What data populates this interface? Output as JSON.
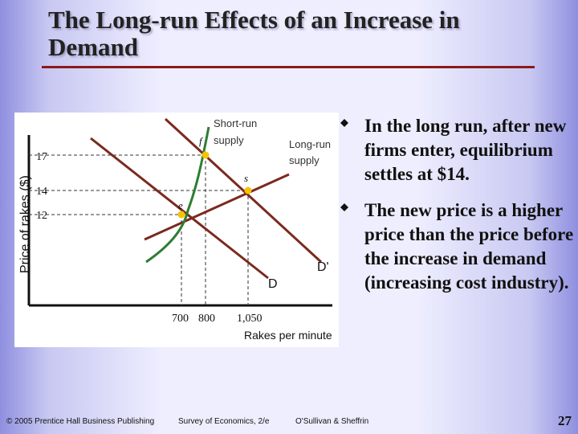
{
  "slide": {
    "title": "The Long-run Effects of an Increase in Demand",
    "bullets": [
      "In the long run, after new firms enter, equilibrium settles at $14.",
      "The new price is a higher price than the price before the increase in demand (increasing cost industry)."
    ],
    "footer": {
      "publisher": "© 2005 Prentice Hall Business Publishing",
      "book": "Survey of Economics, 2/e",
      "authors": "O'Sullivan & Sheffrin"
    },
    "page_number": "27"
  },
  "figure": {
    "y_axis_label": "Price of rakes ($)",
    "x_axis_label": "Rakes per minute",
    "y_ticks": [
      "17",
      "14",
      "12"
    ],
    "x_ticks": [
      "700",
      "800",
      "1,050"
    ],
    "short_run_label": [
      "Short-run",
      "supply"
    ],
    "long_run_label": [
      "Long-run",
      "supply"
    ],
    "demand_label": "D",
    "new_demand_label": "D'",
    "point_labels": {
      "e": "e",
      "f": "f",
      "s": "s"
    },
    "colors": {
      "supply_curve": "#2e7d32",
      "curves": "#7a2a1e",
      "points": "#f5c400"
    }
  },
  "chart_data": {
    "type": "line",
    "xlabel": "Rakes per minute",
    "ylabel": "Price of rakes ($)",
    "points": [
      {
        "label": "e",
        "x": 700,
        "y": 12
      },
      {
        "label": "f",
        "x": 800,
        "y": 17
      },
      {
        "label": "s",
        "x": 1050,
        "y": 14
      }
    ],
    "series": [
      {
        "name": "Short-run supply"
      },
      {
        "name": "Long-run supply"
      },
      {
        "name": "D"
      },
      {
        "name": "D'"
      }
    ]
  }
}
